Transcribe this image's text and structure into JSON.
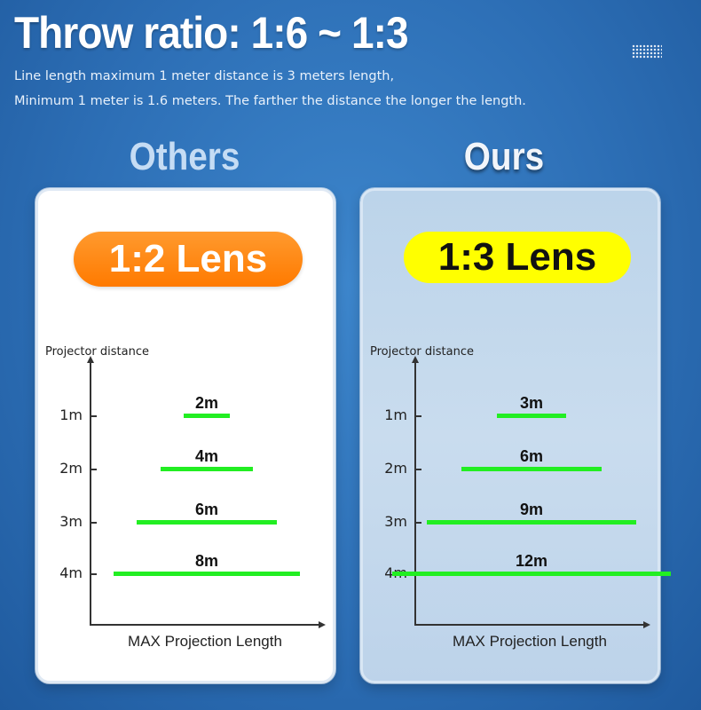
{
  "title": "Throw ratio: 1:6 ~ 1:3",
  "subtitle_line1": "Line length maximum 1 meter distance is 3 meters length,",
  "subtitle_line2": "Minimum 1 meter is 1.6 meters. The farther the distance the longer the length.",
  "accent_colors": {
    "background": "#2d6fb6",
    "orange_pill": "#ff7a00",
    "yellow_pill": "#ffff00",
    "bar": "#22ee22"
  },
  "others": {
    "heading": "Others",
    "lens": "1:2 Lens",
    "chart_data": {
      "type": "bar",
      "orientation": "horizontal",
      "ylabel": "Projector distance",
      "xlabel": "MAX Projection Length",
      "categories": [
        "1m",
        "2m",
        "3m",
        "4m"
      ],
      "values": [
        2,
        4,
        6,
        8
      ],
      "labels": [
        "2m",
        "4m",
        "6m",
        "8m"
      ],
      "units": "m"
    }
  },
  "ours": {
    "heading": "Ours",
    "lens": "1:3 Lens",
    "chart_data": {
      "type": "bar",
      "orientation": "horizontal",
      "ylabel": "Projector distance",
      "xlabel": "MAX Projection Length",
      "categories": [
        "1m",
        "2m",
        "3m",
        "4m"
      ],
      "values": [
        3,
        6,
        9,
        12
      ],
      "labels": [
        "3m",
        "6m",
        "9m",
        "12m"
      ],
      "units": "m"
    }
  }
}
